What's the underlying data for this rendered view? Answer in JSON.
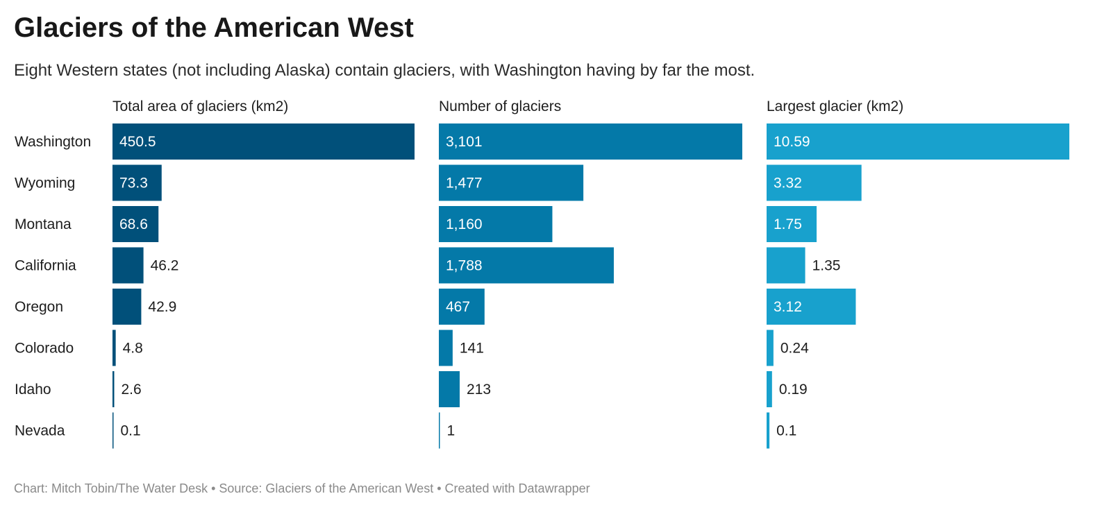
{
  "title": "Glaciers of the American West",
  "subtitle": "Eight Western states (not including Alaska) contain glaciers, with Washington having by far the most.",
  "footer": "Chart: Mitch Tobin/The Water Desk • Source: Glaciers of the American West • Created with Datawrapper",
  "colors": {
    "area": "#01507a",
    "count": "#0479a8",
    "largest": "#18a1cd",
    "label_inside": "#ffffff",
    "label_outside": "#1d1d1d"
  },
  "chart_data": {
    "type": "bar",
    "orientation": "horizontal",
    "categories": [
      "Washington",
      "Wyoming",
      "Montana",
      "California",
      "Oregon",
      "Colorado",
      "Idaho",
      "Nevada"
    ],
    "panels": [
      {
        "name": "Total area of glaciers (km2)",
        "values": [
          450.5,
          73.3,
          68.6,
          46.2,
          42.9,
          4.8,
          2.6,
          0.1
        ],
        "labels": [
          "450.5",
          "73.3",
          "68.6",
          "46.2",
          "42.9",
          "4.8",
          "2.6",
          "0.1"
        ],
        "xlim": [
          0,
          450.5
        ]
      },
      {
        "name": "Number of glaciers",
        "values": [
          3101,
          1477,
          1160,
          1788,
          467,
          141,
          213,
          1
        ],
        "labels": [
          "3,101",
          "1,477",
          "1,160",
          "1,788",
          "467",
          "141",
          "213",
          "1"
        ],
        "xlim": [
          0,
          3101
        ]
      },
      {
        "name": "Largest glacier (km2)",
        "values": [
          10.59,
          3.32,
          1.75,
          1.35,
          3.12,
          0.24,
          0.19,
          0.1
        ],
        "labels": [
          "10.59",
          "3.32",
          "1.75",
          "1.35",
          "3.12",
          "0.24",
          "0.19",
          "0.1"
        ],
        "xlim": [
          0,
          10.59
        ]
      }
    ],
    "grid": false,
    "legend": "none"
  }
}
